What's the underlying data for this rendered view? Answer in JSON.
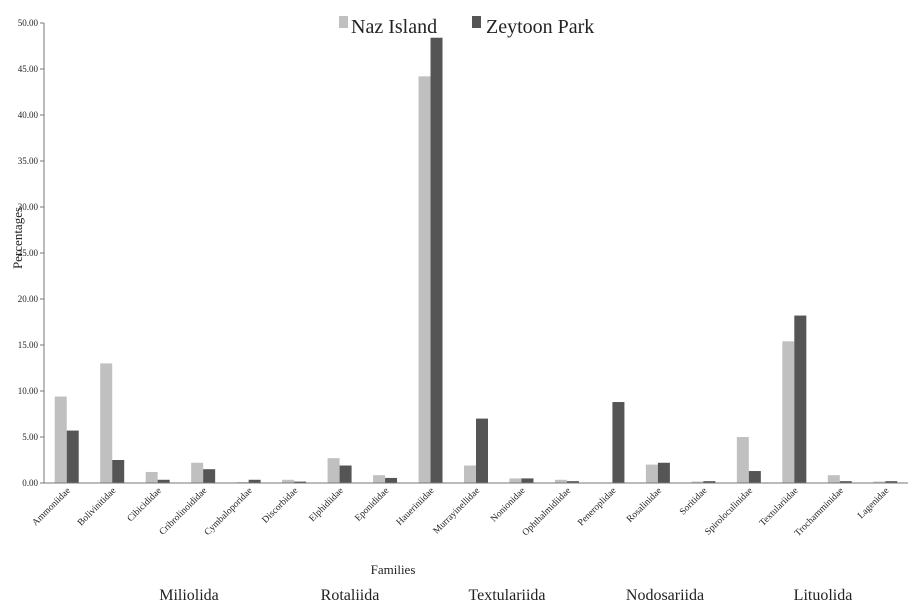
{
  "chart_data": {
    "type": "bar",
    "title": "",
    "xlabel": "Families",
    "ylabel": "Percentages",
    "ylim": [
      0,
      50
    ],
    "ytick_step": 5,
    "ytick_labels": [
      "0.00",
      "5.00",
      "10.00",
      "15.00",
      "20.00",
      "25.00",
      "30.00",
      "35.00",
      "40.00",
      "45.00",
      "50.00"
    ],
    "grid": false,
    "legend_position": "top-center",
    "categories": [
      "Ammoniidae",
      "Bolivinitidae",
      "Cibicididae",
      "Cribrolinoididae",
      "Cymbaloporidae",
      "Discorbidae",
      "Elphidiidae",
      "Eponididae",
      "Haueriniidae",
      "Murrayinellidae",
      "Nonionidae",
      "Ophthalmidiidae",
      "Peneroplidae",
      "Rosalinidae",
      "Soritidae",
      "Spiroloculinidae",
      "Textulariidae",
      "Trochamminidae",
      "Lagenidae"
    ],
    "series": [
      {
        "name": "Naz Island",
        "color": "#c0c0c0",
        "values": [
          9.4,
          13.0,
          1.2,
          2.2,
          0.1,
          0.35,
          2.7,
          0.85,
          44.2,
          1.9,
          0.5,
          0.35,
          0.0,
          2.0,
          0.15,
          5.0,
          15.4,
          0.85,
          0.15
        ]
      },
      {
        "name": "Zeytoon Park",
        "color": "#555555",
        "values": [
          5.7,
          2.5,
          0.35,
          1.5,
          0.35,
          0.15,
          1.9,
          0.55,
          48.4,
          7.0,
          0.5,
          0.2,
          8.8,
          2.2,
          0.2,
          1.3,
          18.2,
          0.2,
          0.2
        ]
      }
    ],
    "groups": [
      "Miliolida",
      "Rotaliida",
      "Textulariida",
      "Nodosariida",
      "Lituolida"
    ]
  }
}
